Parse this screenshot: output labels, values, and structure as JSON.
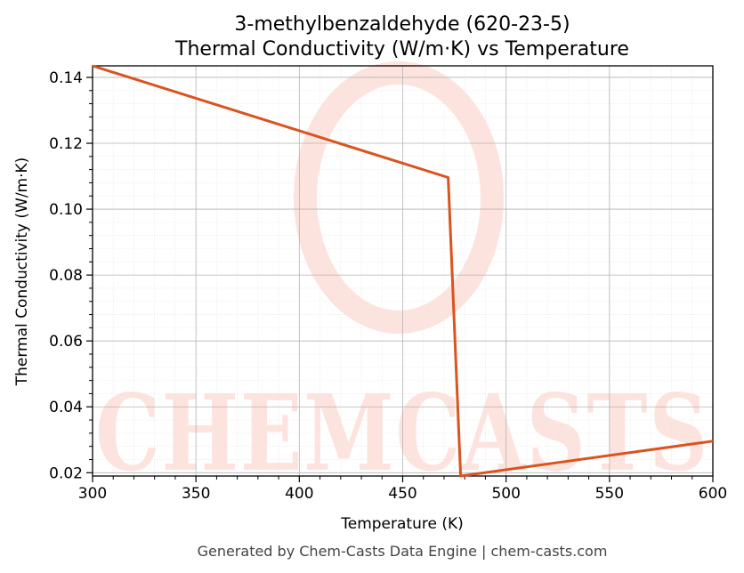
{
  "chart_data": {
    "type": "line",
    "title": "3-methylbenzaldehyde (620-23-5)",
    "subtitle": "Thermal Conductivity (W/m·K) vs Temperature",
    "xlabel": "Temperature (K)",
    "ylabel": "Thermal Conductivity (W/m·K)",
    "xlim": [
      300,
      600
    ],
    "ylim": [
      0.019,
      0.1435
    ],
    "x_ticks": [
      300,
      350,
      400,
      450,
      500,
      550,
      600
    ],
    "y_ticks": [
      0.02,
      0.04,
      0.06,
      0.08,
      0.1,
      0.12,
      0.14
    ],
    "x_tick_labels": [
      "300",
      "350",
      "400",
      "450",
      "500",
      "550",
      "600"
    ],
    "y_tick_labels": [
      "0.02",
      "0.04",
      "0.06",
      "0.08",
      "0.10",
      "0.12",
      "0.14"
    ],
    "grid": true,
    "series": [
      {
        "color": "#d9541e",
        "points": [
          [
            300,
            0.1435
          ],
          [
            472,
            0.1096
          ],
          [
            478,
            0.019
          ],
          [
            600,
            0.0296
          ]
        ]
      }
    ]
  },
  "watermark": {
    "text": "CHEMCASTS",
    "color": "#fde3de"
  },
  "footer": "Generated by Chem-Casts Data Engine | chem-casts.com"
}
